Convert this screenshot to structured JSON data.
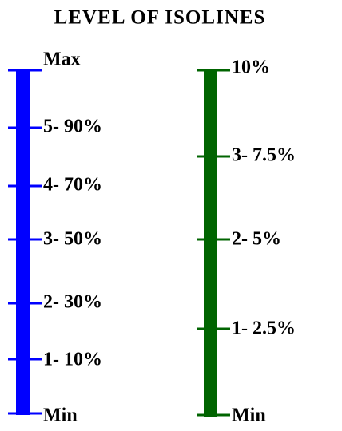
{
  "title": "LEVEL OF ISOLINES",
  "left_scale": {
    "labels": [
      "Max",
      "5- 90%",
      "4- 70%",
      "3- 50%",
      "2- 30%",
      "1- 10%",
      "Min"
    ]
  },
  "right_scale": {
    "labels": [
      "10%",
      "3- 7.5%",
      "2- 5%",
      "1- 2.5%",
      "Min"
    ]
  }
}
